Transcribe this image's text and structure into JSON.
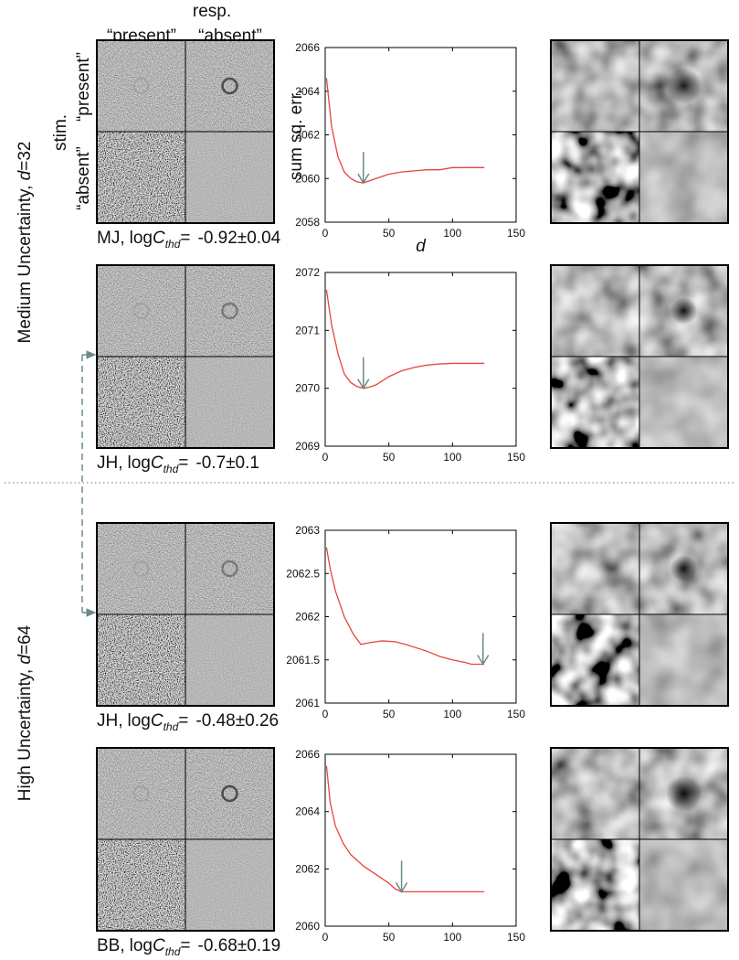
{
  "header": {
    "resp": "resp.",
    "present": "“present”",
    "absent": "“absent”",
    "stim": "stim."
  },
  "group_labels": [
    {
      "prefix": "Medium Uncertainty, ",
      "var": "d",
      "suffix": "=32"
    },
    {
      "prefix": "High Uncertainty, ",
      "var": "d",
      "suffix": "=64"
    }
  ],
  "log_label": {
    "log": "log",
    "C": "C",
    "sub": "thd",
    "eq": "="
  },
  "subjects": [
    {
      "name": "MJ,",
      "value": "-0.92±0.04"
    },
    {
      "name": "JH,",
      "value": "-0.7±0.1"
    },
    {
      "name": "JH,",
      "value": "-0.48±0.26"
    },
    {
      "name": "BB,",
      "value": "-0.68±0.19"
    }
  ],
  "chart_data": [
    {
      "type": "line",
      "ylabel": "sum sq. err.",
      "xlabel": "d",
      "x": [
        1,
        5,
        10,
        15,
        20,
        25,
        30,
        35,
        40,
        50,
        60,
        70,
        80,
        90,
        100,
        110,
        125
      ],
      "values": [
        2064.6,
        2062.4,
        2061.0,
        2060.3,
        2060.0,
        2059.85,
        2059.8,
        2059.9,
        2060.0,
        2060.2,
        2060.3,
        2060.35,
        2060.4,
        2060.4,
        2060.5,
        2060.5,
        2060.5
      ],
      "color": "#e8453c",
      "arrow_x": 30,
      "arrow_color": "#6c8a8a",
      "xlim": [
        0,
        150
      ],
      "xticks": [
        0,
        50,
        100,
        150
      ],
      "ylim": [
        2058,
        2066
      ],
      "yticks": [
        2058,
        2060,
        2062,
        2064,
        2066
      ]
    },
    {
      "type": "line",
      "x": [
        1,
        5,
        10,
        15,
        20,
        25,
        30,
        35,
        40,
        50,
        60,
        70,
        80,
        90,
        100,
        110,
        125
      ],
      "values": [
        2071.7,
        2071.1,
        2070.6,
        2070.25,
        2070.1,
        2070.03,
        2070.0,
        2070.02,
        2070.06,
        2070.2,
        2070.3,
        2070.36,
        2070.4,
        2070.42,
        2070.43,
        2070.43,
        2070.43
      ],
      "color": "#e8453c",
      "arrow_x": 30,
      "arrow_color": "#6c8a8a",
      "xlim": [
        0,
        150
      ],
      "xticks": [
        0,
        50,
        100,
        150
      ],
      "ylim": [
        2069,
        2072
      ],
      "yticks": [
        2069,
        2070,
        2071,
        2072
      ]
    },
    {
      "type": "line",
      "x": [
        1,
        4,
        8,
        15,
        22,
        28,
        35,
        45,
        55,
        65,
        80,
        90,
        100,
        110,
        115,
        125
      ],
      "values": [
        2062.8,
        2062.55,
        2062.3,
        2062.0,
        2061.8,
        2061.68,
        2061.7,
        2061.72,
        2061.71,
        2061.67,
        2061.6,
        2061.54,
        2061.5,
        2061.47,
        2061.45,
        2061.45
      ],
      "color": "#e8453c",
      "arrow_x": 124,
      "arrow_color": "#6c8a8a",
      "xlim": [
        0,
        150
      ],
      "xticks": [
        0,
        50,
        100,
        150
      ],
      "ylim": [
        2061,
        2063
      ],
      "yticks": [
        2061,
        2061.5,
        2062,
        2062.5,
        2063
      ]
    },
    {
      "type": "line",
      "x": [
        1,
        4,
        8,
        14,
        20,
        30,
        40,
        50,
        55,
        60,
        65,
        80,
        100,
        125
      ],
      "values": [
        2065.6,
        2064.3,
        2063.5,
        2062.9,
        2062.5,
        2062.1,
        2061.8,
        2061.5,
        2061.3,
        2061.2,
        2061.2,
        2061.2,
        2061.2,
        2061.2
      ],
      "color": "#e8453c",
      "arrow_x": 60,
      "arrow_color": "#6c8a8a",
      "xlim": [
        0,
        150
      ],
      "xticks": [
        0,
        50,
        100,
        150
      ],
      "ylim": [
        2060,
        2066
      ],
      "yticks": [
        2060,
        2062,
        2064,
        2066
      ]
    }
  ]
}
